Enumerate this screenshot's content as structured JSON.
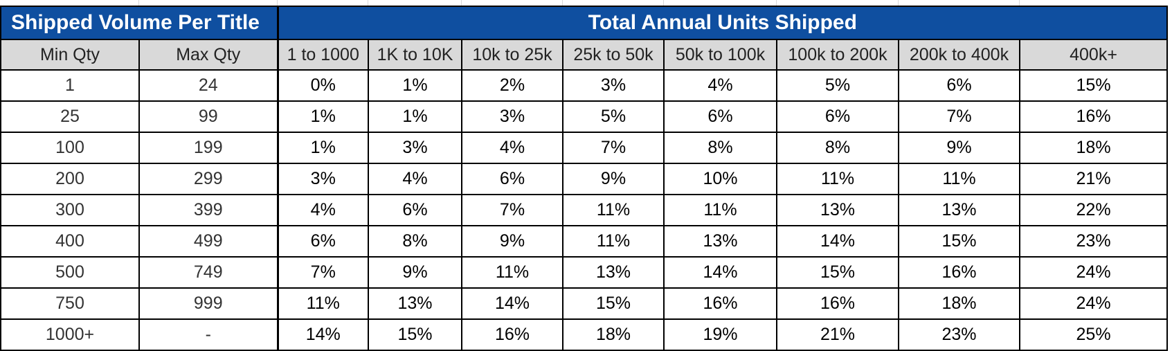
{
  "table": {
    "left_header": "Shipped Volume Per Title",
    "right_header": "Total Annual Units Shipped",
    "columns": [
      "Min Qty",
      "Max Qty",
      "1 to 1000",
      "1K to 10K",
      "10k to 25k",
      "25k to 50k",
      "50k to 100k",
      "100k to 200k",
      "200k to 400k",
      "400k+"
    ],
    "rows": [
      [
        "1",
        "24",
        "0%",
        "1%",
        "2%",
        "3%",
        "4%",
        "5%",
        "6%",
        "15%"
      ],
      [
        "25",
        "99",
        "1%",
        "1%",
        "3%",
        "5%",
        "6%",
        "6%",
        "7%",
        "16%"
      ],
      [
        "100",
        "199",
        "1%",
        "3%",
        "4%",
        "7%",
        "8%",
        "8%",
        "9%",
        "18%"
      ],
      [
        "200",
        "299",
        "3%",
        "4%",
        "6%",
        "9%",
        "10%",
        "11%",
        "11%",
        "21%"
      ],
      [
        "300",
        "399",
        "4%",
        "6%",
        "7%",
        "11%",
        "11%",
        "13%",
        "13%",
        "22%"
      ],
      [
        "400",
        "499",
        "6%",
        "8%",
        "9%",
        "11%",
        "13%",
        "14%",
        "15%",
        "23%"
      ],
      [
        "500",
        "749",
        "7%",
        "9%",
        "11%",
        "13%",
        "14%",
        "15%",
        "16%",
        "24%"
      ],
      [
        "750",
        "999",
        "11%",
        "13%",
        "14%",
        "15%",
        "16%",
        "16%",
        "18%",
        "24%"
      ],
      [
        "1000+",
        "-",
        "14%",
        "15%",
        "16%",
        "18%",
        "19%",
        "21%",
        "23%",
        "25%"
      ]
    ]
  },
  "colors": {
    "header_blue": "#0f4fa0",
    "subheader_gray": "#d9d9d9"
  }
}
